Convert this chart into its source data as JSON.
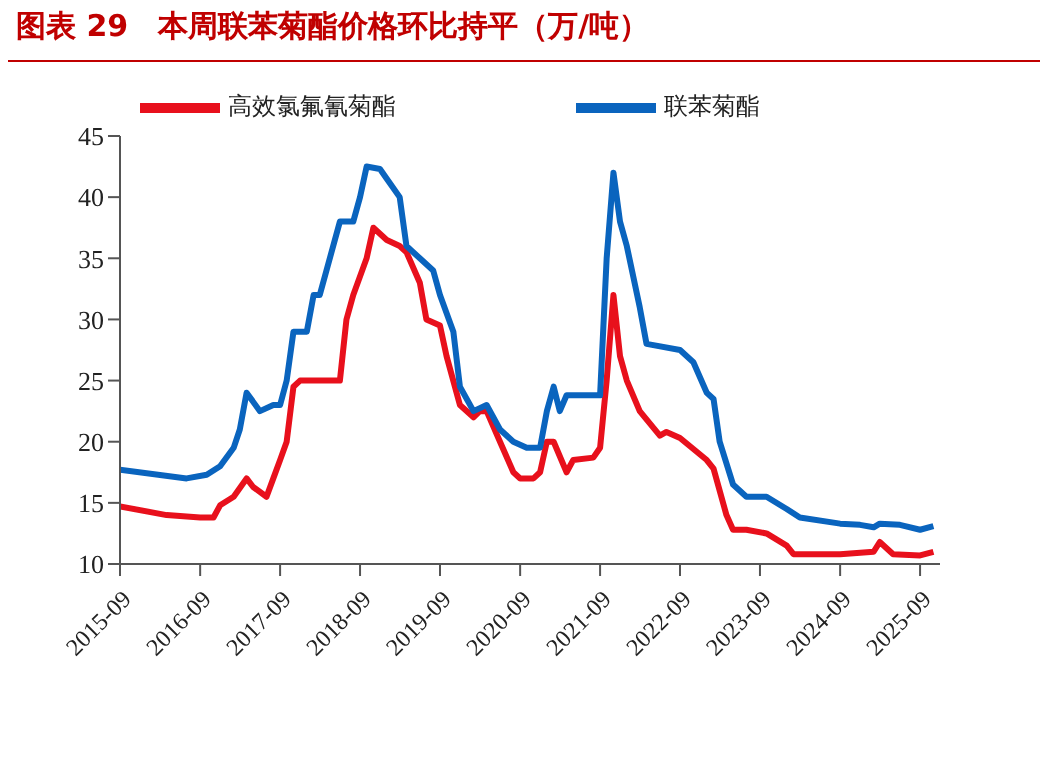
{
  "chart_data": {
    "type": "line",
    "title": "图表 29　本周联苯菊酯价格环比持平（万/吨）",
    "series": [
      {
        "name": "高效氯氟氰菊酯",
        "color": "#e8101c",
        "x": [
          "2015-09",
          "2016-04",
          "2016-09",
          "2016-11",
          "2016-12",
          "2017-02",
          "2017-04",
          "2017-05",
          "2017-07",
          "2017-08",
          "2017-09",
          "2017-10",
          "2017-11",
          "2017-12",
          "2018-06",
          "2018-07",
          "2018-08",
          "2018-10",
          "2018-11",
          "2019-01",
          "2019-03",
          "2019-04",
          "2019-06",
          "2019-07",
          "2019-09",
          "2019-10",
          "2019-12",
          "2020-02",
          "2020-03",
          "2020-04",
          "2020-06",
          "2020-08",
          "2020-09",
          "2020-11",
          "2020-12",
          "2021-01",
          "2021-02",
          "2021-04",
          "2021-05",
          "2021-08",
          "2021-09",
          "2021-10",
          "2021-11",
          "2021-12",
          "2022-01",
          "2022-03",
          "2022-06",
          "2022-07",
          "2022-09",
          "2023-01",
          "2023-02",
          "2023-04",
          "2023-05",
          "2023-07",
          "2023-10",
          "2024-01",
          "2024-02",
          "2024-09",
          "2025-02",
          "2025-03",
          "2025-05",
          "2025-09",
          "2025-11"
        ],
        "values": [
          14.7,
          14,
          13.8,
          13.8,
          14.8,
          15.5,
          17,
          16.3,
          15.5,
          17,
          18.5,
          20,
          24.5,
          25,
          25,
          30,
          32,
          35,
          37.5,
          36.5,
          36,
          35.5,
          33,
          30,
          29.5,
          27,
          23,
          22,
          22.5,
          22.5,
          20,
          17.5,
          17,
          17,
          17.5,
          20,
          20,
          17.5,
          18.5,
          18.7,
          19.5,
          25,
          32,
          27,
          25,
          22.5,
          20.5,
          20.8,
          20.3,
          18.5,
          17.8,
          14,
          12.8,
          12.8,
          12.5,
          11.5,
          10.8,
          10.8,
          11,
          11.8,
          10.8,
          10.7,
          11
        ]
      },
      {
        "name": "联苯菊酯",
        "color": "#0a64be",
        "x": [
          "2015-09",
          "2016-07",
          "2016-10",
          "2016-12",
          "2017-02",
          "2017-03",
          "2017-04",
          "2017-06",
          "2017-08",
          "2017-09",
          "2017-10",
          "2017-11",
          "2018-01",
          "2018-02",
          "2018-03",
          "2018-06",
          "2018-08",
          "2018-09",
          "2018-10",
          "2018-12",
          "2019-01",
          "2019-03",
          "2019-04",
          "2019-06",
          "2019-08",
          "2019-09",
          "2019-11",
          "2019-12",
          "2020-02",
          "2020-04",
          "2020-06",
          "2020-08",
          "2020-10",
          "2020-12",
          "2021-01",
          "2021-02",
          "2021-03",
          "2021-04",
          "2021-09",
          "2021-10",
          "2021-11",
          "2021-12",
          "2022-01",
          "2022-03",
          "2022-04",
          "2022-09",
          "2022-11",
          "2023-01",
          "2023-02",
          "2023-03",
          "2023-05",
          "2023-07",
          "2023-10",
          "2024-01",
          "2024-03",
          "2024-09",
          "2024-12",
          "2025-02",
          "2025-03",
          "2025-06",
          "2025-09",
          "2025-11"
        ],
        "values": [
          17.7,
          17,
          17.3,
          18,
          19.5,
          21,
          24,
          22.5,
          23,
          23,
          25,
          29,
          29,
          32,
          32,
          38,
          38,
          40,
          42.5,
          42.3,
          41.5,
          40,
          36,
          35,
          34,
          32,
          29,
          24.5,
          22.5,
          23,
          21,
          20,
          19.5,
          19.5,
          22.5,
          24.5,
          22.5,
          23.8,
          23.8,
          35,
          42,
          38,
          36,
          31,
          28,
          27.5,
          26.5,
          24,
          23.5,
          20,
          16.5,
          15.5,
          15.5,
          14.5,
          13.8,
          13.3,
          13.2,
          13,
          13.3,
          13.2,
          12.8,
          13.1
        ]
      }
    ],
    "xlim": [
      "2015-09",
      "2025-12"
    ],
    "xticks": [
      "2015-09",
      "2016-09",
      "2017-09",
      "2018-09",
      "2019-09",
      "2020-09",
      "2021-09",
      "2022-09",
      "2023-09",
      "2024-09",
      "2025-09"
    ],
    "ylim": [
      10,
      45
    ],
    "yticks": [
      10,
      15,
      20,
      25,
      30,
      35,
      40,
      45
    ],
    "grid": false,
    "legend": "top",
    "marker": "none",
    "line_style": "solid"
  }
}
